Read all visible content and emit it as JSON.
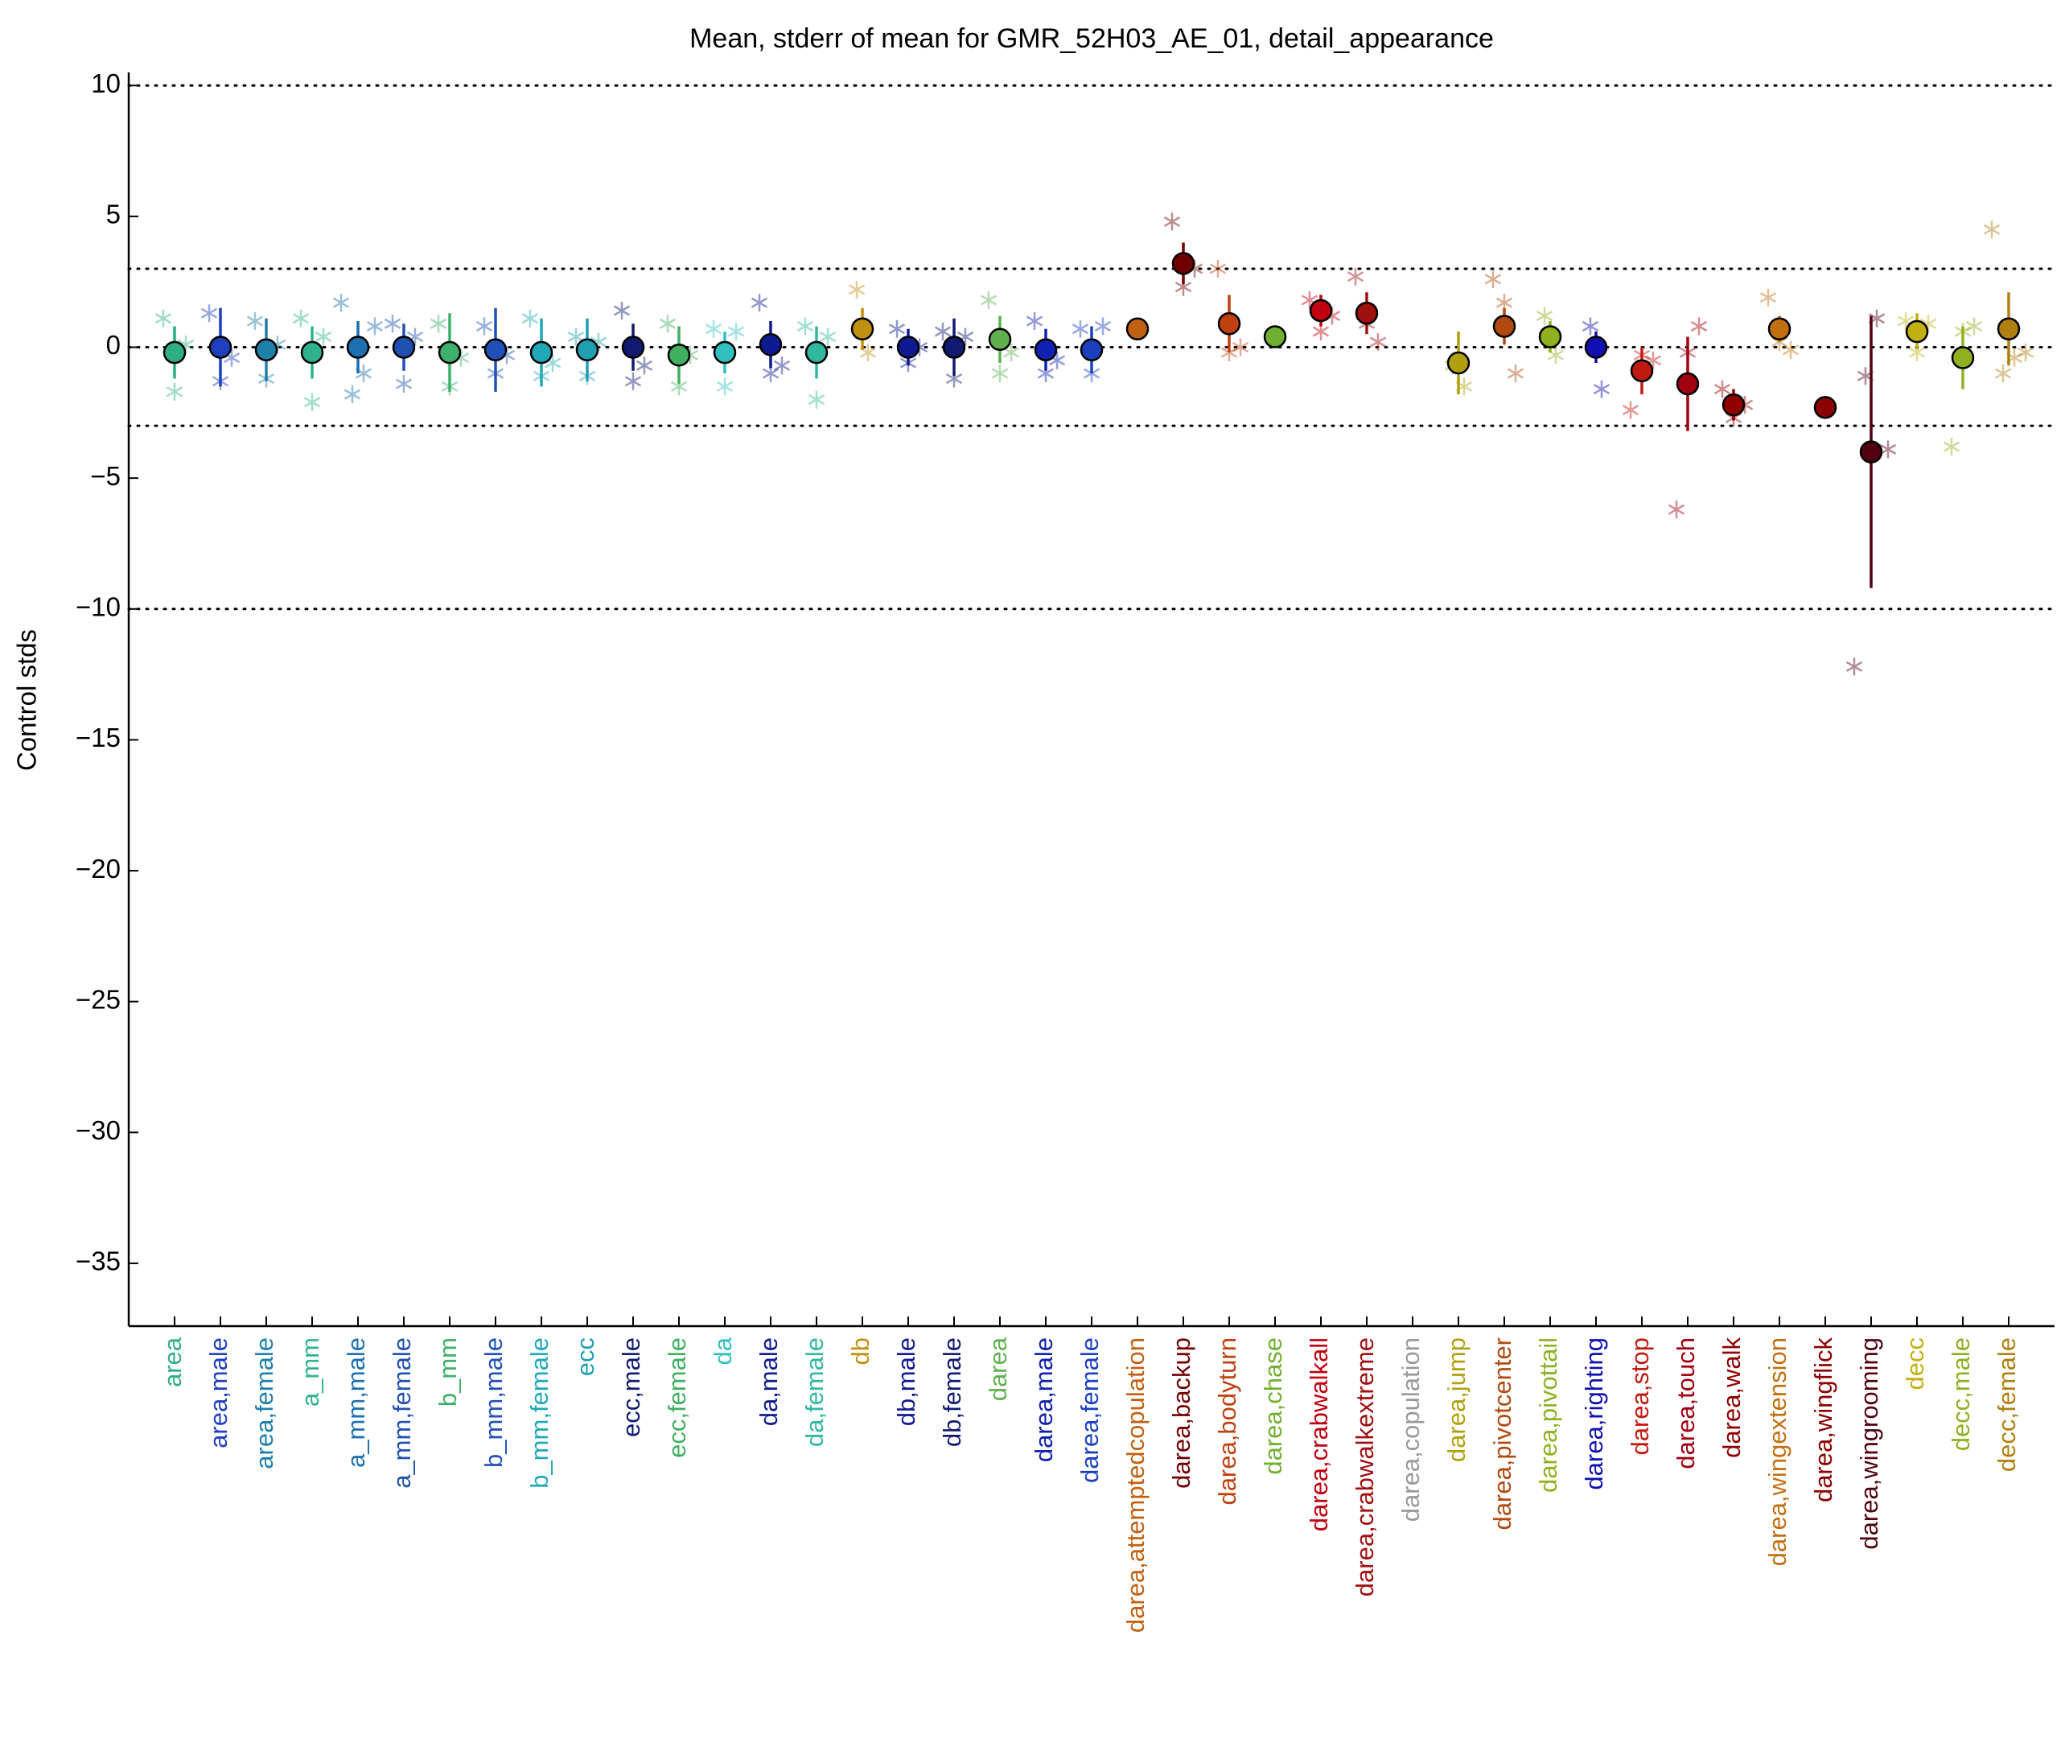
{
  "chart_data": {
    "type": "errorbar",
    "title": "Mean, stderr of mean for GMR_52H03_AE_01, detail_appearance",
    "ylabel": "Control stds",
    "categories": [
      "area",
      "area,male",
      "area,female",
      "a_mm",
      "a_mm,male",
      "a_mm,female",
      "b_mm",
      "b_mm,male",
      "b_mm,female",
      "ecc",
      "ecc,male",
      "ecc,female",
      "da",
      "da,male",
      "da,female",
      "db",
      "db,male",
      "db,female",
      "darea",
      "darea,male",
      "darea,female",
      "darea,attemptedcopulation",
      "darea,backup",
      "darea,bodyturn",
      "darea,chase",
      "darea,crabwalkall",
      "darea,crabwalkextreme",
      "darea,copulation",
      "darea,jump",
      "darea,pivotcenter",
      "darea,pivottail",
      "darea,righting",
      "darea,stop",
      "darea,touch",
      "darea,walk",
      "darea,wingextension",
      "darea,wingflick",
      "darea,wingrooming",
      "decc",
      "decc,male",
      "decc,female"
    ],
    "colors": [
      "#2fae86",
      "#1f3fbf",
      "#1e7fa8",
      "#2fb38f",
      "#1c6fb0",
      "#2050b0",
      "#3db06a",
      "#2050b8",
      "#1fa8b8",
      "#1f9fb0",
      "#101a70",
      "#40b060",
      "#30c0c0",
      "#101a90",
      "#30b8a0",
      "#c09010",
      "#101a90",
      "#101a70",
      "#60b050",
      "#1020b0",
      "#1a40c0",
      "#c06010",
      "#700000",
      "#c04010",
      "#70b030",
      "#c00010",
      "#a01010",
      "#999999",
      "#b0a010",
      "#b04a10",
      "#90b020",
      "#1010b0",
      "#c01a10",
      "#a00010",
      "#900000",
      "#c07010",
      "#8b0000",
      "#500010",
      "#c0b010",
      "#90b020",
      "#b08010"
    ],
    "values": [
      -0.2,
      0,
      -0.1,
      -0.2,
      0,
      0,
      -0.2,
      -0.1,
      -0.2,
      -0.1,
      0,
      -0.3,
      -0.2,
      0.1,
      -0.2,
      0.7,
      0,
      0,
      0.3,
      -0.1,
      -0.1,
      0.7,
      3.2,
      0.9,
      0.4,
      1.4,
      1.3,
      null,
      -0.6,
      0.8,
      0.4,
      0,
      -0.9,
      -1.4,
      -2.2,
      0.7,
      -2.3,
      -4,
      0.6,
      -0.4,
      0.7
    ],
    "errors": [
      1,
      1.5,
      1.2,
      1,
      1,
      0.9,
      1.5,
      1.6,
      1.3,
      1.2,
      0.9,
      1.1,
      0.8,
      0.9,
      1,
      0.8,
      0.7,
      1.1,
      0.9,
      0.8,
      0.9,
      0.4,
      0.8,
      1.1,
      0.4,
      0.6,
      0.8,
      null,
      1.2,
      0.7,
      0.6,
      0.6,
      0.9,
      1.8,
      0.6,
      0.5,
      0.2,
      5.2,
      0.7,
      1.2,
      1.4
    ],
    "stars": [
      [
        1.1,
        -1.7,
        0.1
      ],
      [
        1.3,
        -1.3,
        -0.4
      ],
      [
        1.0,
        -1.2,
        0.1
      ],
      [
        1.1,
        -2.1,
        0.4
      ],
      [
        1.7,
        -1.8,
        -1.0,
        0.8
      ],
      [
        0.9,
        -1.4,
        0.4
      ],
      [
        0.9,
        -1.5,
        -0.4
      ],
      [
        0.8,
        -1.0,
        -0.3
      ],
      [
        1.1,
        -1.1,
        -0.6
      ],
      [
        0.4,
        -1.1,
        0.2
      ],
      [
        1.4,
        -1.3,
        -0.7
      ],
      [
        0.9,
        -1.5,
        -0.3
      ],
      [
        0.7,
        -1.5,
        0.6
      ],
      [
        1.7,
        -1.0,
        -0.7
      ],
      [
        0.8,
        -2.0,
        0.4
      ],
      [
        2.2,
        -0.2
      ],
      [
        0.7,
        -0.6,
        0.0
      ],
      [
        0.6,
        -1.2,
        0.4
      ],
      [
        1.8,
        -1.0,
        -0.2
      ],
      [
        1.0,
        -1.0,
        -0.5
      ],
      [
        0.7,
        -1.0,
        0.8
      ],
      [],
      [
        4.8,
        2.3,
        3.0
      ],
      [
        3.0,
        -0.2,
        0.0
      ],
      [
        0.3
      ],
      [
        1.8,
        0.6,
        1.2
      ],
      [
        2.7,
        0.9,
        0.2
      ],
      [],
      [
        -0.7,
        -1.5
      ],
      [
        2.6,
        1.7,
        -1.0
      ],
      [
        1.2,
        -0.3
      ],
      [
        0.8,
        -1.6
      ],
      [
        -2.4,
        -0.3,
        -0.5
      ],
      [
        -6.2,
        -0.2,
        0.8
      ],
      [
        -1.6,
        -2.7,
        -2.2
      ],
      [
        1.9,
        0.2,
        -0.1
      ],
      [],
      [
        -12.2,
        -1.1,
        1.1,
        -3.9
      ],
      [
        1.0,
        -0.2,
        0.9
      ],
      [
        -3.8,
        0.6,
        0.8
      ],
      [
        4.5,
        -1.0,
        -0.4,
        -0.2
      ]
    ],
    "reference_lines": [
      10,
      3,
      0,
      -3,
      -10
    ],
    "ylim": [
      -37.4,
      10.5
    ],
    "yticks": [
      10,
      5,
      0,
      {
        "value": -5,
        "label": "−5"
      },
      {
        "value": -10,
        "label": "−10"
      },
      {
        "value": -15,
        "label": "−15"
      },
      {
        "value": -20,
        "label": "−20"
      },
      {
        "value": -25,
        "label": "−25"
      },
      {
        "value": -30,
        "label": "−30"
      },
      {
        "value": -35,
        "label": "−35"
      }
    ]
  }
}
